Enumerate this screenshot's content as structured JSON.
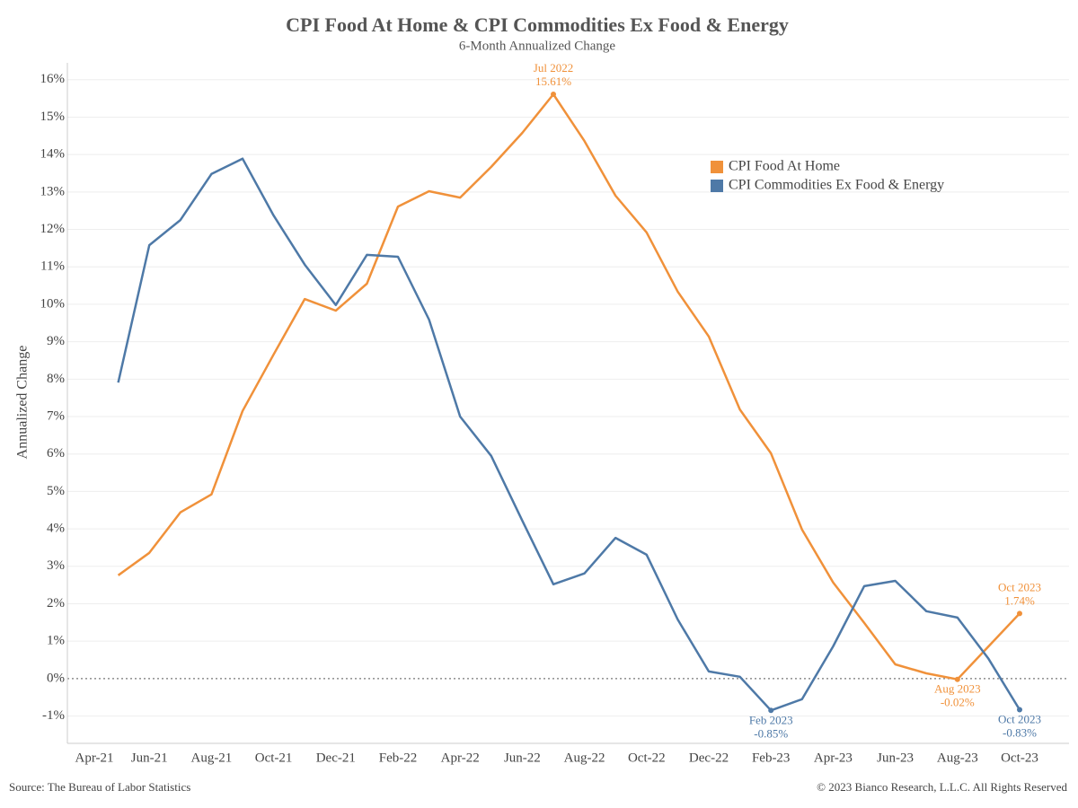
{
  "chart_data": {
    "type": "line",
    "title": "CPI Food At Home & CPI Commodities Ex Food & Energy",
    "subtitle": "6-Month Annualized Change",
    "y_label": "Annualized Change",
    "source": "Source: The Bureau of Labor Statistics",
    "copyright": "© 2023 Bianco Research, L.L.C. All Rights Reserved",
    "categories": [
      "Apr-21",
      null,
      "Jun-21",
      null,
      "Aug-21",
      null,
      "Oct-21",
      null,
      "Dec-21",
      null,
      "Feb-22",
      null,
      "Apr-22",
      null,
      "Jun-22",
      null,
      "Aug-22",
      null,
      "Oct-22",
      null,
      "Dec-22",
      null,
      "Feb-23",
      null,
      "Apr-23",
      null,
      "Jun-23",
      null,
      "Aug-23",
      null,
      "Oct-23"
    ],
    "series": [
      {
        "name": "CPI Food At Home",
        "color": "#f0913a",
        "values": [
          null,
          2.76,
          3.36,
          4.44,
          4.92,
          7.15,
          8.66,
          10.14,
          9.83,
          10.55,
          12.61,
          13.02,
          12.85,
          13.67,
          14.58,
          15.61,
          14.36,
          12.9,
          11.92,
          10.34,
          9.14,
          7.19,
          6.02,
          3.98,
          2.57,
          1.49,
          0.38,
          0.14,
          -0.02,
          0.86,
          1.74
        ],
        "date_labels": [
          null,
          null,
          null,
          null,
          null,
          null,
          null,
          null,
          null,
          null,
          null,
          null,
          null,
          null,
          null,
          "Jul 2022",
          null,
          null,
          null,
          null,
          null,
          null,
          null,
          null,
          null,
          null,
          null,
          null,
          "Aug 2023",
          null,
          "Oct 2023"
        ],
        "value_labels": [
          null,
          null,
          null,
          null,
          null,
          null,
          null,
          null,
          null,
          null,
          null,
          null,
          null,
          null,
          null,
          "15.61%",
          null,
          null,
          null,
          null,
          null,
          null,
          null,
          null,
          null,
          null,
          null,
          null,
          "-0.02%",
          null,
          "1.74%"
        ]
      },
      {
        "name": "CPI Commodities Ex Food & Energy",
        "color": "#4e79a7",
        "values": [
          null,
          7.91,
          11.58,
          12.25,
          13.48,
          13.89,
          12.37,
          11.06,
          9.98,
          11.32,
          11.27,
          9.59,
          7.0,
          5.95,
          4.22,
          2.52,
          2.81,
          3.76,
          3.31,
          1.58,
          0.19,
          0.05,
          -0.85,
          -0.55,
          0.86,
          2.47,
          2.61,
          1.8,
          1.63,
          0.53,
          -0.83
        ],
        "date_labels": [
          null,
          null,
          null,
          null,
          null,
          null,
          null,
          null,
          null,
          null,
          null,
          null,
          null,
          null,
          null,
          null,
          null,
          null,
          null,
          null,
          null,
          null,
          "Feb 2023",
          null,
          null,
          null,
          null,
          null,
          null,
          null,
          "Oct 2023"
        ],
        "value_labels": [
          null,
          null,
          null,
          null,
          null,
          null,
          null,
          null,
          null,
          null,
          null,
          null,
          null,
          null,
          null,
          null,
          null,
          null,
          null,
          null,
          null,
          null,
          "-0.85%",
          null,
          null,
          null,
          null,
          null,
          null,
          null,
          "-0.83%"
        ]
      }
    ],
    "ylim": [
      -1.73,
      16.45
    ],
    "yticks": [
      {
        "value": -1,
        "label": "-1%"
      },
      {
        "value": 0,
        "label": "0%"
      },
      {
        "value": 1,
        "label": "1%"
      },
      {
        "value": 2,
        "label": "2%"
      },
      {
        "value": 3,
        "label": "3%"
      },
      {
        "value": 4,
        "label": "4%"
      },
      {
        "value": 5,
        "label": "5%"
      },
      {
        "value": 6,
        "label": "6%"
      },
      {
        "value": 7,
        "label": "7%"
      },
      {
        "value": 8,
        "label": "8%"
      },
      {
        "value": 9,
        "label": "9%"
      },
      {
        "value": 10,
        "label": "10%"
      },
      {
        "value": 11,
        "label": "11%"
      },
      {
        "value": 12,
        "label": "12%"
      },
      {
        "value": 13,
        "label": "13%"
      },
      {
        "value": 14,
        "label": "14%"
      },
      {
        "value": 15,
        "label": "15%"
      },
      {
        "value": 16,
        "label": "16%"
      }
    ],
    "grid": true,
    "legend": "upper right"
  }
}
